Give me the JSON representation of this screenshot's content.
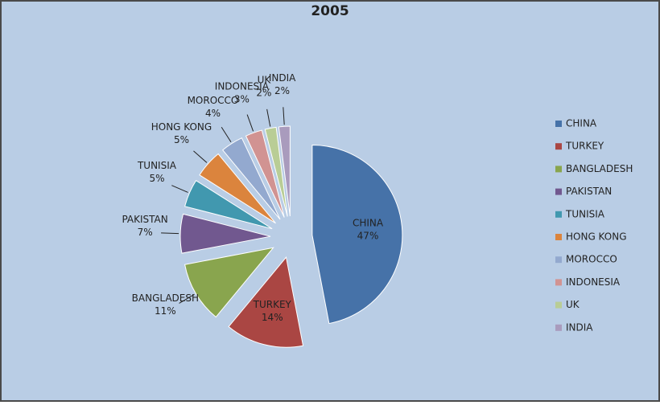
{
  "chart_data": {
    "type": "pie",
    "title": "2005",
    "categories": [
      "CHINA",
      "TURKEY",
      "BANGLADESH",
      "PAKISTAN",
      "TUNISIA",
      "HONG KONG",
      "MOROCCO",
      "INDONESIA",
      "UK",
      "INDIA"
    ],
    "values": [
      47,
      14,
      11,
      7,
      5,
      5,
      4,
      3,
      2,
      2
    ],
    "value_labels": [
      "47%",
      "14%",
      "11%",
      "7%",
      "5%",
      "5%",
      "4%",
      "3%",
      "2%",
      "2%"
    ],
    "colors": [
      "#4672a8",
      "#aa4643",
      "#89a54e",
      "#71588f",
      "#4198af",
      "#db843d",
      "#93a9cf",
      "#d19392",
      "#b9cd96",
      "#a99bbd"
    ],
    "legend": "right"
  }
}
